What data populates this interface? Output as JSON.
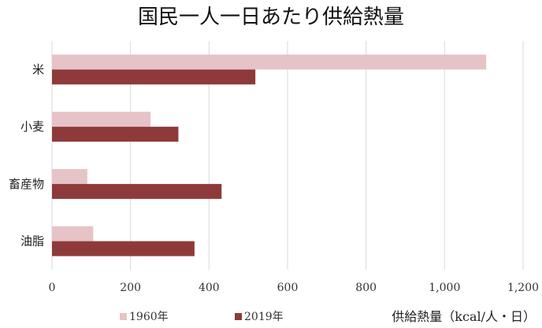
{
  "chart_data": {
    "type": "bar",
    "orientation": "horizontal",
    "title": "国民一人一日あたり供給熱量",
    "xlabel": "供給熱量（kcal/人・日）",
    "ylabel": "",
    "categories": [
      "米",
      "小麦",
      "畜産物",
      "油脂"
    ],
    "series": [
      {
        "name": "1960年",
        "values": [
          1106,
          251,
          90,
          105
        ],
        "color": "#e6c3c6"
      },
      {
        "name": "2019年",
        "values": [
          518,
          322,
          432,
          363
        ],
        "color": "#8f3a3a"
      }
    ],
    "xlim": [
      0,
      1200
    ],
    "ticks": [
      0,
      200,
      400,
      600,
      800,
      1000,
      1200
    ],
    "tick_labels": [
      "0",
      "200",
      "400",
      "600",
      "800",
      "1,000",
      "1,200"
    ],
    "grid": true,
    "legend_position": "bottom-left"
  }
}
